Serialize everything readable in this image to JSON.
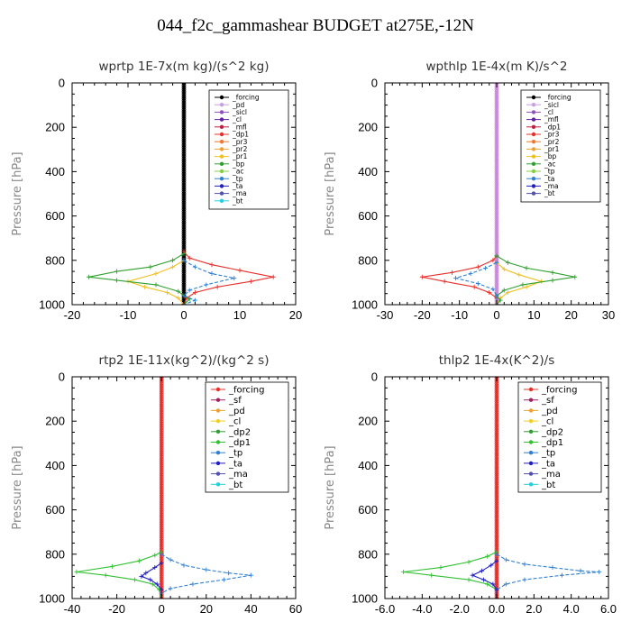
{
  "title": "044_f2c_gammashear  BUDGET at275E,-12N",
  "chart_data": [
    {
      "type": "line",
      "title": "wprtp  1E-7x(m kg)/(s^2 kg)",
      "ylabel": "Pressure [hPa]",
      "xlim": [
        -20,
        20
      ],
      "ylim": [
        1000,
        0
      ],
      "xticks": [
        "-20",
        "-10",
        "0",
        "10",
        "20"
      ],
      "yticks": [
        "0",
        "200",
        "400",
        "600",
        "800",
        "1000"
      ],
      "legend": [
        "_forcing",
        "_pd",
        "_sicl",
        "_cl",
        "_mfl",
        "_dp1",
        "_pr3",
        "_pr2",
        "_pr1",
        "_bp",
        "_ac",
        "_tp",
        "_ta",
        "_ma",
        "_bt"
      ],
      "series": [
        {
          "name": "_forcing",
          "color": "#000000",
          "points": [
            [
              0,
              0
            ],
            [
              0,
              1000
            ]
          ]
        },
        {
          "name": "_dp1",
          "color": "#e8302a",
          "points": [
            [
              0,
              760
            ],
            [
              1,
              790
            ],
            [
              5,
              820
            ],
            [
              10,
              845
            ],
            [
              16,
              875
            ],
            [
              12,
              895
            ],
            [
              6,
              920
            ],
            [
              2,
              945
            ],
            [
              0.5,
              970
            ],
            [
              0,
              1000
            ]
          ]
        },
        {
          "name": "_pr1",
          "color": "#f0c020",
          "points": [
            [
              0,
              800
            ],
            [
              -2,
              830
            ],
            [
              -5,
              860
            ],
            [
              -10,
              895
            ],
            [
              -7,
              920
            ],
            [
              -3,
              945
            ],
            [
              -1,
              970
            ],
            [
              0,
              1000
            ]
          ]
        },
        {
          "name": "_bp",
          "color": "#2fa02f",
          "points": [
            [
              0,
              770
            ],
            [
              -2,
              800
            ],
            [
              -6,
              830
            ],
            [
              -12,
              850
            ],
            [
              -17,
              875
            ],
            [
              -12,
              890
            ],
            [
              -5,
              910
            ],
            [
              -1,
              940
            ],
            [
              0,
              960
            ],
            [
              1,
              975
            ],
            [
              0,
              1000
            ]
          ]
        },
        {
          "name": "_tp",
          "color": "#3080d0",
          "points": [
            [
              0,
              800
            ],
            [
              2,
              830
            ],
            [
              5,
              860
            ],
            [
              9,
              880
            ],
            [
              4,
              910
            ],
            [
              1,
              935
            ],
            [
              0,
              960
            ],
            [
              2,
              980
            ],
            [
              0,
              1000
            ]
          ]
        }
      ]
    },
    {
      "type": "line",
      "title": "wpthlp  1E-4x(m K)/s^2",
      "ylabel": "Pressure [hPa]",
      "xlim": [
        -30,
        30
      ],
      "ylim": [
        1000,
        0
      ],
      "xticks": [
        "-30",
        "-20",
        "-10",
        "0",
        "10",
        "20",
        "30"
      ],
      "yticks": [
        "0",
        "200",
        "400",
        "600",
        "800",
        "1000"
      ],
      "legend": [
        "_forcing",
        "_sicl",
        "_cl",
        "_mfl",
        "_dp1",
        "_pr3",
        "_pr2",
        "_pr1",
        "_bp",
        "_ac",
        "_tp",
        "_ta",
        "_ma",
        "_bt"
      ],
      "series": [
        {
          "name": "_forcing",
          "color": "#cc88dd",
          "points": [
            [
              0,
              0
            ],
            [
              0,
              1000
            ]
          ]
        },
        {
          "name": "_dp1",
          "color": "#e8302a",
          "points": [
            [
              0,
              780
            ],
            [
              -1,
              800
            ],
            [
              -5,
              830
            ],
            [
              -12,
              855
            ],
            [
              -20,
              875
            ],
            [
              -14,
              895
            ],
            [
              -6,
              920
            ],
            [
              -2,
              945
            ],
            [
              0,
              970
            ],
            [
              0,
              1000
            ]
          ]
        },
        {
          "name": "_pr1",
          "color": "#f0c020",
          "points": [
            [
              0,
              810
            ],
            [
              2,
              840
            ],
            [
              6,
              865
            ],
            [
              12,
              895
            ],
            [
              8,
              920
            ],
            [
              3,
              945
            ],
            [
              1,
              970
            ],
            [
              0,
              1000
            ]
          ]
        },
        {
          "name": "_bp",
          "color": "#2fa02f",
          "points": [
            [
              0,
              780
            ],
            [
              3,
              810
            ],
            [
              8,
              835
            ],
            [
              15,
              855
            ],
            [
              21,
              875
            ],
            [
              15,
              890
            ],
            [
              7,
              910
            ],
            [
              2,
              935
            ],
            [
              0,
              960
            ],
            [
              1,
              980
            ],
            [
              0,
              1000
            ]
          ]
        },
        {
          "name": "_tp",
          "color": "#3080d0",
          "points": [
            [
              0,
              810
            ],
            [
              -3,
              835
            ],
            [
              -7,
              860
            ],
            [
              -11,
              880
            ],
            [
              -5,
              905
            ],
            [
              -1,
              930
            ],
            [
              0,
              960
            ],
            [
              0,
              1000
            ]
          ]
        }
      ]
    },
    {
      "type": "line",
      "title": "rtp2  1E-11x(kg^2)/(kg^2 s)",
      "ylabel": "Pressure [hPa]",
      "xlim": [
        -40,
        60
      ],
      "ylim": [
        1000,
        0
      ],
      "xticks": [
        "-40",
        "-20",
        "0",
        "20",
        "40",
        "60"
      ],
      "yticks": [
        "0",
        "200",
        "400",
        "600",
        "800",
        "1000"
      ],
      "legend": [
        "_forcing",
        "_sf",
        "_pd",
        "_cl",
        "_dp2",
        "_dp1",
        "_tp",
        "_ta",
        "_ma",
        "_bt"
      ],
      "series": [
        {
          "name": "_forcing",
          "color": "#e8302a",
          "points": [
            [
              0,
              0
            ],
            [
              0,
              1000
            ]
          ]
        },
        {
          "name": "_dp1",
          "color": "#30c030",
          "points": [
            [
              0,
              790
            ],
            [
              -3,
              805
            ],
            [
              -10,
              830
            ],
            [
              -22,
              855
            ],
            [
              -38,
              880
            ],
            [
              -25,
              895
            ],
            [
              -12,
              915
            ],
            [
              -4,
              935
            ],
            [
              -1,
              960
            ],
            [
              0,
              1000
            ]
          ]
        },
        {
          "name": "_tp",
          "color": "#3080d0",
          "points": [
            [
              0,
              800
            ],
            [
              4,
              825
            ],
            [
              10,
              850
            ],
            [
              20,
              870
            ],
            [
              30,
              885
            ],
            [
              40,
              895
            ],
            [
              28,
              915
            ],
            [
              14,
              935
            ],
            [
              4,
              955
            ],
            [
              0,
              975
            ],
            [
              0,
              1000
            ]
          ]
        },
        {
          "name": "_ta",
          "color": "#2020c0",
          "points": [
            [
              0,
              840
            ],
            [
              -3,
              860
            ],
            [
              -7,
              885
            ],
            [
              -9,
              900
            ],
            [
              -5,
              915
            ],
            [
              -2,
              935
            ],
            [
              0,
              960
            ],
            [
              0,
              1000
            ]
          ]
        }
      ]
    },
    {
      "type": "line",
      "title": "thlp2  1E-4x(K^2)/s",
      "ylabel": "Pressure [hPa]",
      "xlim": [
        -6,
        6
      ],
      "ylim": [
        1000,
        0
      ],
      "xticks": [
        "-6.0",
        "-4.0",
        "-2.0",
        "0.0",
        "2.0",
        "4.0",
        "6.0"
      ],
      "yticks": [
        "0",
        "200",
        "400",
        "600",
        "800",
        "1000"
      ],
      "legend": [
        "_forcing",
        "_sf",
        "_pd",
        "_cl",
        "_dp2",
        "_dp1",
        "_tp",
        "_ta",
        "_ma",
        "_bt"
      ],
      "series": [
        {
          "name": "_forcing",
          "color": "#e8302a",
          "points": [
            [
              0,
              0
            ],
            [
              0,
              1000
            ]
          ]
        },
        {
          "name": "_dp1",
          "color": "#30c030",
          "points": [
            [
              0,
              790
            ],
            [
              -0.5,
              810
            ],
            [
              -1.5,
              835
            ],
            [
              -3,
              860
            ],
            [
              -5,
              880
            ],
            [
              -3.5,
              895
            ],
            [
              -1.5,
              915
            ],
            [
              -0.5,
              935
            ],
            [
              0,
              960
            ],
            [
              0,
              1000
            ]
          ]
        },
        {
          "name": "_tp",
          "color": "#3080d0",
          "points": [
            [
              0,
              800
            ],
            [
              0.5,
              825
            ],
            [
              1.5,
              845
            ],
            [
              3,
              860
            ],
            [
              4.5,
              875
            ],
            [
              5.5,
              880
            ],
            [
              3.5,
              895
            ],
            [
              1.5,
              915
            ],
            [
              0.5,
              935
            ],
            [
              0,
              960
            ],
            [
              0,
              1000
            ]
          ]
        },
        {
          "name": "_ta",
          "color": "#2020c0",
          "points": [
            [
              0,
              830
            ],
            [
              -0.3,
              850
            ],
            [
              -0.8,
              875
            ],
            [
              -1.3,
              895
            ],
            [
              -0.7,
              915
            ],
            [
              -0.2,
              935
            ],
            [
              0,
              960
            ],
            [
              0,
              1000
            ]
          ]
        }
      ]
    }
  ]
}
